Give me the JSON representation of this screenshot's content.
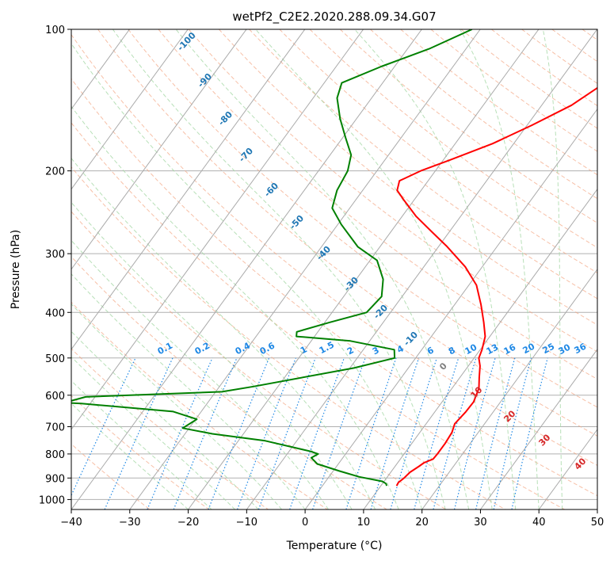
{
  "chart_data": {
    "type": "line",
    "diagram": "skew-T log-P",
    "title": "wetPf2_C2E2.2020.288.09.34.G07",
    "xlabel": "Temperature (°C)",
    "ylabel": "Pressure (hPa)",
    "xlim": [
      -40,
      50
    ],
    "ylim": [
      1050,
      100
    ],
    "y_scale": "log",
    "x_ticks": [
      -40,
      -30,
      -20,
      -10,
      0,
      10,
      20,
      30,
      40,
      50
    ],
    "y_ticks": [
      100,
      200,
      300,
      400,
      500,
      600,
      700,
      800,
      900,
      1000
    ],
    "grid": true,
    "colors": {
      "temperature": "#ff0000",
      "dewpoint": "#008000",
      "isotherm_label": "#1f77b4",
      "mixing_ratio": "#1e88e5",
      "isotherm": "#aaaaaa",
      "dry_adiabat": "#f4a582",
      "moist_adiabat": "#a6d8a6",
      "wet_bulb_label": "#d62728"
    },
    "isotherm_labels": [
      "-100",
      "-90",
      "-80",
      "-70",
      "-60",
      "-50",
      "-40",
      "-30",
      "-20",
      "-10",
      "0"
    ],
    "mixing_ratio_labels": [
      "0.1",
      "0.2",
      "0.4",
      "0.6",
      "1",
      "1.5",
      "2",
      "3",
      "4",
      "6",
      "8",
      "10",
      "13",
      "16",
      "20",
      "25",
      "30",
      "36"
    ],
    "wet_bulb_labels": [
      "10",
      "20",
      "30",
      "40"
    ],
    "series": [
      {
        "role": "temperature",
        "points": [
          [
            12.7,
            935
          ],
          [
            12.6,
            920
          ],
          [
            13.0,
            900
          ],
          [
            13.3,
            875
          ],
          [
            14.1,
            850
          ],
          [
            14.5,
            835
          ],
          [
            15.6,
            820
          ],
          [
            15.7,
            800
          ],
          [
            15.7,
            760
          ],
          [
            15.5,
            720
          ],
          [
            14.9,
            690
          ],
          [
            15.3,
            650
          ],
          [
            15.4,
            620
          ],
          [
            14.6,
            580
          ],
          [
            13.3,
            550
          ],
          [
            12.0,
            520
          ],
          [
            10.8,
            500
          ],
          [
            10.3,
            480
          ],
          [
            9.2,
            450
          ],
          [
            7.2,
            420
          ],
          [
            4.5,
            385
          ],
          [
            1.3,
            350
          ],
          [
            -2.9,
            320
          ],
          [
            -8.5,
            290
          ],
          [
            -12.9,
            270
          ],
          [
            -17.6,
            250
          ],
          [
            -21.9,
            230
          ],
          [
            -24.1,
            220
          ],
          [
            -24.9,
            210
          ],
          [
            -22.5,
            200
          ],
          [
            -19.0,
            190
          ],
          [
            -13.6,
            175
          ],
          [
            -9.2,
            160
          ],
          [
            -4.9,
            145
          ],
          [
            -2.0,
            130
          ],
          [
            -1.2,
            115
          ],
          [
            1.0,
            100
          ]
        ]
      },
      {
        "role": "dewpoint",
        "points": [
          [
            11.0,
            935
          ],
          [
            10.6,
            925
          ],
          [
            9.7,
            915
          ],
          [
            5.2,
            895
          ],
          [
            1.1,
            870
          ],
          [
            -3.6,
            840
          ],
          [
            -5.4,
            815
          ],
          [
            -4.7,
            800
          ],
          [
            -6.3,
            790
          ],
          [
            -15.4,
            750
          ],
          [
            -25.3,
            725
          ],
          [
            -31.1,
            705
          ],
          [
            -29.8,
            675
          ],
          [
            -34.8,
            650
          ],
          [
            -51.5,
            625
          ],
          [
            -54.5,
            622
          ],
          [
            -51.6,
            605
          ],
          [
            -28.9,
            590
          ],
          [
            -24.2,
            575
          ],
          [
            -9.3,
            525
          ],
          [
            -3.6,
            500
          ],
          [
            -4.7,
            480
          ],
          [
            -13.3,
            460
          ],
          [
            -23.1,
            450
          ],
          [
            -23.6,
            440
          ],
          [
            -19.2,
            420
          ],
          [
            -14.1,
            400
          ],
          [
            -13.5,
            370
          ],
          [
            -15.4,
            340
          ],
          [
            -18.8,
            310
          ],
          [
            -23.8,
            290
          ],
          [
            -29.4,
            260
          ],
          [
            -33.0,
            240
          ],
          [
            -34.4,
            220
          ],
          [
            -35.0,
            200
          ],
          [
            -36.4,
            185
          ],
          [
            -39.5,
            170
          ],
          [
            -42.8,
            155
          ],
          [
            -45.9,
            140
          ],
          [
            -47.0,
            130
          ],
          [
            -42.3,
            120
          ],
          [
            -36.3,
            110
          ],
          [
            -31.4,
            100
          ]
        ]
      }
    ]
  }
}
